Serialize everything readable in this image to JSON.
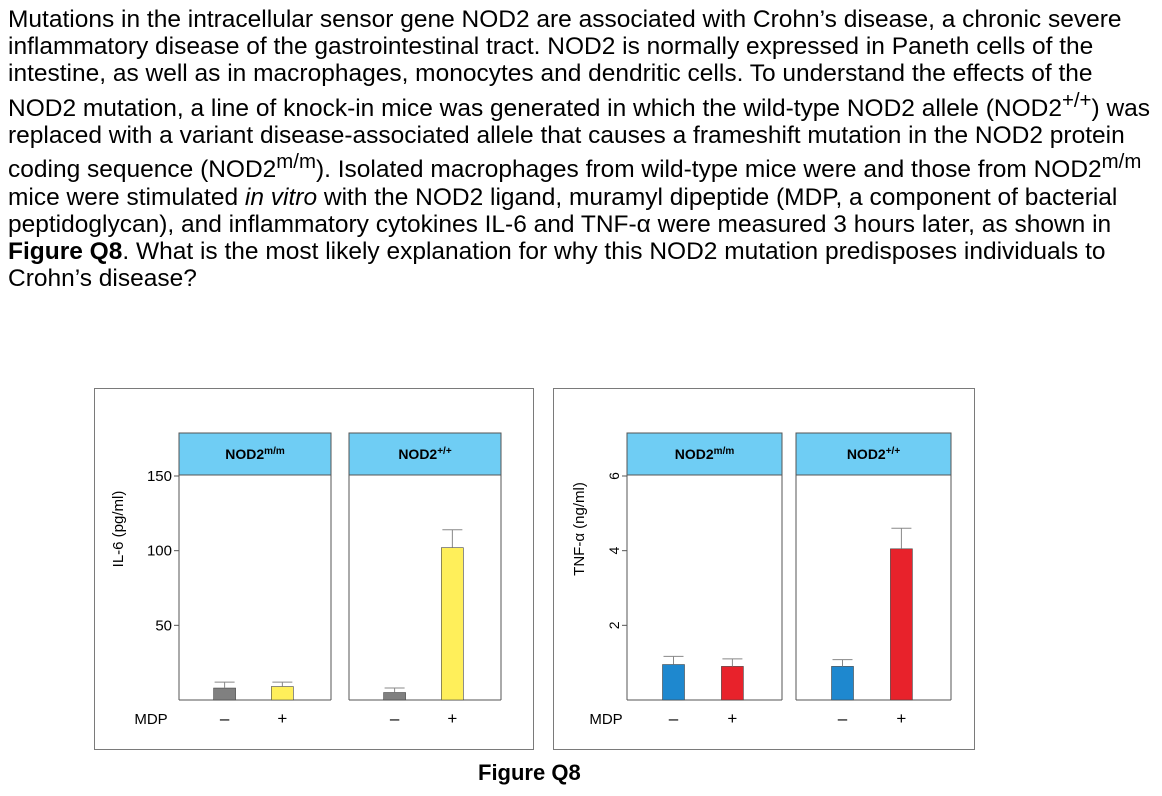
{
  "question": {
    "p1": "Mutations in the intracellular sensor gene NOD2 are associated with Crohn’s disease, a chronic severe inflammatory disease of the gastrointestinal tract. NOD2 is normally expressed in Paneth cells of the intestine, as well as in macrophages, monocytes and dendritic cells. To understand the effects of the NOD2 mutation, a line of knock-in mice was generated in which the wild-type NOD2 allele (NOD2",
    "sup1": "+/+",
    "p2": ") was replaced with a variant disease-associated allele that causes a frameshift mutation in the NOD2 protein coding sequence (NOD2",
    "sup2": "m/m",
    "p3": "). Isolated macrophages from wild-type mice were and those from NOD2",
    "sup3": "m/m",
    "p4": " mice were stimulated ",
    "italic": "in vitro",
    "p5": " with the NOD2 ligand, muramyl dipeptide (MDP, a component of bacterial peptidoglycan), and inflammatory cytokines IL-6 and TNF-α were measured 3 hours later, as shown in ",
    "bold": "Figure Q8",
    "p6": ". What is the most likely explanation for why this NOD2 mutation predisposes individuals to Crohn’s disease?"
  },
  "caption": "Figure Q8",
  "chart_data": [
    {
      "type": "bar",
      "ylabel": "IL-6 (pg/ml)",
      "xlabel": "MDP",
      "ylim": [
        0,
        150
      ],
      "yticks": [
        50,
        100,
        150
      ],
      "categories": [
        "–",
        "+"
      ],
      "panels": [
        {
          "name": "NOD2m/m",
          "label_base": "NOD2",
          "label_sup": "m/m",
          "values": [
            8,
            9
          ],
          "errors": [
            4,
            3
          ],
          "colors": [
            "#808080",
            "#ffef5a"
          ]
        },
        {
          "name": "NOD2+/+",
          "label_base": "NOD2",
          "label_sup": "+/+",
          "values": [
            5,
            102
          ],
          "errors": [
            3,
            12
          ],
          "colors": [
            "#808080",
            "#ffef5a"
          ]
        }
      ],
      "header_color": "#6fcdf4"
    },
    {
      "type": "bar",
      "ylabel": "TNF-α (ng/ml)",
      "xlabel": "MDP",
      "ylim": [
        0,
        6
      ],
      "yticks": [
        2,
        4,
        6
      ],
      "categories": [
        "–",
        "+"
      ],
      "panels": [
        {
          "name": "NOD2m/m",
          "label_base": "NOD2",
          "label_sup": "m/m",
          "values": [
            0.95,
            0.9
          ],
          "errors": [
            0.22,
            0.2
          ],
          "colors": [
            "#1e88cf",
            "#e8222b"
          ]
        },
        {
          "name": "NOD2+/+",
          "label_base": "NOD2",
          "label_sup": "+/+",
          "values": [
            0.9,
            4.05
          ],
          "errors": [
            0.18,
            0.55
          ],
          "colors": [
            "#1e88cf",
            "#e8222b"
          ]
        }
      ],
      "header_color": "#6fcdf4"
    }
  ]
}
